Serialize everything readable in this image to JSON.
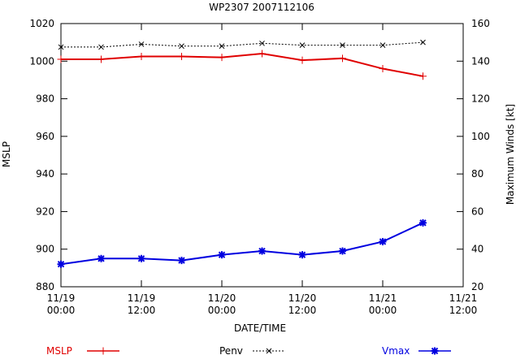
{
  "chart_data": {
    "type": "line",
    "title": "WP2307 2007112106",
    "xlabel": "DATE/TIME",
    "ylabel": "MSLP",
    "y2label": "Maximum Winds [kt]",
    "x_ticks": [
      {
        "line1": "11/19",
        "line2": "00:00"
      },
      {
        "line1": "11/19",
        "line2": "12:00"
      },
      {
        "line1": "11/20",
        "line2": "00:00"
      },
      {
        "line1": "11/20",
        "line2": "12:00"
      },
      {
        "line1": "11/21",
        "line2": "00:00"
      },
      {
        "line1": "11/21",
        "line2": "12:00"
      }
    ],
    "x_hours": [
      0,
      6,
      12,
      18,
      24,
      30,
      36,
      42,
      48,
      54
    ],
    "xlim_hours": [
      0,
      60
    ],
    "ylim": [
      880,
      1020
    ],
    "y_ticks": [
      880,
      900,
      920,
      940,
      960,
      980,
      1000,
      1020
    ],
    "y2lim": [
      20,
      160
    ],
    "y2_ticks": [
      20,
      40,
      60,
      80,
      100,
      120,
      140,
      160
    ],
    "series": [
      {
        "name": "MSLP",
        "axis": "left",
        "color": "#e00000",
        "marker": "plus",
        "values": [
          1001,
          1001,
          1002.5,
          1002.5,
          1002,
          1004,
          1000.5,
          1001.5,
          996,
          992
        ]
      },
      {
        "name": "Penv",
        "axis": "left",
        "color": "#000000",
        "marker": "x",
        "dashed": true,
        "values": [
          1007.5,
          1007.5,
          1009,
          1008,
          1008,
          1009.5,
          1008.5,
          1008.5,
          1008.5,
          1010
        ]
      },
      {
        "name": "Vmax",
        "axis": "right",
        "color": "#0000e0",
        "marker": "star",
        "values": [
          32,
          35,
          35,
          34,
          37,
          39,
          37,
          39,
          44,
          54
        ]
      }
    ],
    "legend_position": "bottom"
  }
}
